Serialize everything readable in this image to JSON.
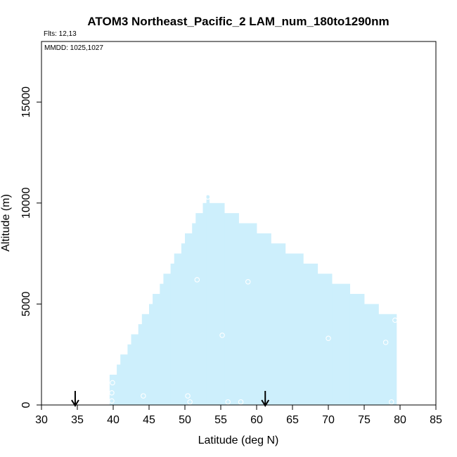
{
  "chart_data": {
    "type": "area",
    "title": "ATOM3 Northeast_Pacific_2 LAM_num_180to1290nm",
    "flights_label": "Flts: 12,13",
    "dates_label": "MMDD: 1025,1027",
    "xlabel": "Latitude (deg N)",
    "ylabel": "Altitude (m)",
    "xlim": [
      30,
      85
    ],
    "ylim": [
      0,
      18000
    ],
    "x_ticks": [
      30,
      35,
      40,
      45,
      50,
      55,
      60,
      65,
      70,
      75,
      80,
      85
    ],
    "y_ticks": [
      0,
      5000,
      10000,
      15000
    ],
    "x_tick_labels": [
      "30",
      "35",
      "40",
      "45",
      "50",
      "55",
      "60",
      "65",
      "70",
      "75",
      "80",
      "85"
    ],
    "y_tick_labels": [
      "0",
      "5000",
      "10000",
      "15000"
    ],
    "fill_color": "#cdeffc",
    "coverage_columns": [
      {
        "x0": 39.5,
        "x1": 40.0,
        "top": 1500
      },
      {
        "x0": 40.0,
        "x1": 40.5,
        "top": 1500
      },
      {
        "x0": 40.5,
        "x1": 41.0,
        "top": 2000
      },
      {
        "x0": 41.0,
        "x1": 42.0,
        "top": 2500
      },
      {
        "x0": 42.0,
        "x1": 42.5,
        "top": 3000
      },
      {
        "x0": 42.5,
        "x1": 43.5,
        "top": 3500
      },
      {
        "x0": 43.5,
        "x1": 44.0,
        "top": 4000
      },
      {
        "x0": 44.0,
        "x1": 45.0,
        "top": 4500
      },
      {
        "x0": 45.0,
        "x1": 45.5,
        "top": 5000
      },
      {
        "x0": 45.5,
        "x1": 46.5,
        "top": 5500
      },
      {
        "x0": 46.5,
        "x1": 47.0,
        "top": 6000
      },
      {
        "x0": 47.0,
        "x1": 48.0,
        "top": 6500
      },
      {
        "x0": 48.0,
        "x1": 48.5,
        "top": 7000
      },
      {
        "x0": 48.5,
        "x1": 49.5,
        "top": 7500
      },
      {
        "x0": 49.5,
        "x1": 50.0,
        "top": 8000
      },
      {
        "x0": 50.0,
        "x1": 51.0,
        "top": 8500
      },
      {
        "x0": 51.0,
        "x1": 51.5,
        "top": 9000
      },
      {
        "x0": 51.5,
        "x1": 52.5,
        "top": 9500
      },
      {
        "x0": 52.5,
        "x1": 53.5,
        "top": 10000
      },
      {
        "x0": 53.0,
        "x1": 53.4,
        "top": 10400
      },
      {
        "x0": 53.5,
        "x1": 55.5,
        "top": 10000
      },
      {
        "x0": 55.5,
        "x1": 57.5,
        "top": 9500
      },
      {
        "x0": 57.5,
        "x1": 60.0,
        "top": 9000
      },
      {
        "x0": 60.0,
        "x1": 62.0,
        "top": 8500
      },
      {
        "x0": 62.0,
        "x1": 64.0,
        "top": 8000
      },
      {
        "x0": 64.0,
        "x1": 66.5,
        "top": 7500
      },
      {
        "x0": 66.5,
        "x1": 68.5,
        "top": 7000
      },
      {
        "x0": 68.5,
        "x1": 70.5,
        "top": 6500
      },
      {
        "x0": 70.5,
        "x1": 73.0,
        "top": 6000
      },
      {
        "x0": 73.0,
        "x1": 75.0,
        "top": 5500
      },
      {
        "x0": 75.0,
        "x1": 77.0,
        "top": 5000
      },
      {
        "x0": 77.0,
        "x1": 79.5,
        "top": 4500
      }
    ],
    "markers": [
      {
        "x": 39.8,
        "y": 200
      },
      {
        "x": 39.8,
        "y": 600
      },
      {
        "x": 39.9,
        "y": 1100
      },
      {
        "x": 44.2,
        "y": 450
      },
      {
        "x": 50.4,
        "y": 450
      },
      {
        "x": 50.7,
        "y": 150
      },
      {
        "x": 51.7,
        "y": 6200
      },
      {
        "x": 53.2,
        "y": 10300
      },
      {
        "x": 55.2,
        "y": 3450
      },
      {
        "x": 56.0,
        "y": 150
      },
      {
        "x": 57.8,
        "y": 150
      },
      {
        "x": 58.8,
        "y": 6100
      },
      {
        "x": 70.0,
        "y": 3300
      },
      {
        "x": 78.0,
        "y": 3100
      },
      {
        "x": 78.8,
        "y": 150
      },
      {
        "x": 79.3,
        "y": 4200
      }
    ],
    "arrows": [
      {
        "x": 34.7
      },
      {
        "x": 61.2
      }
    ]
  }
}
